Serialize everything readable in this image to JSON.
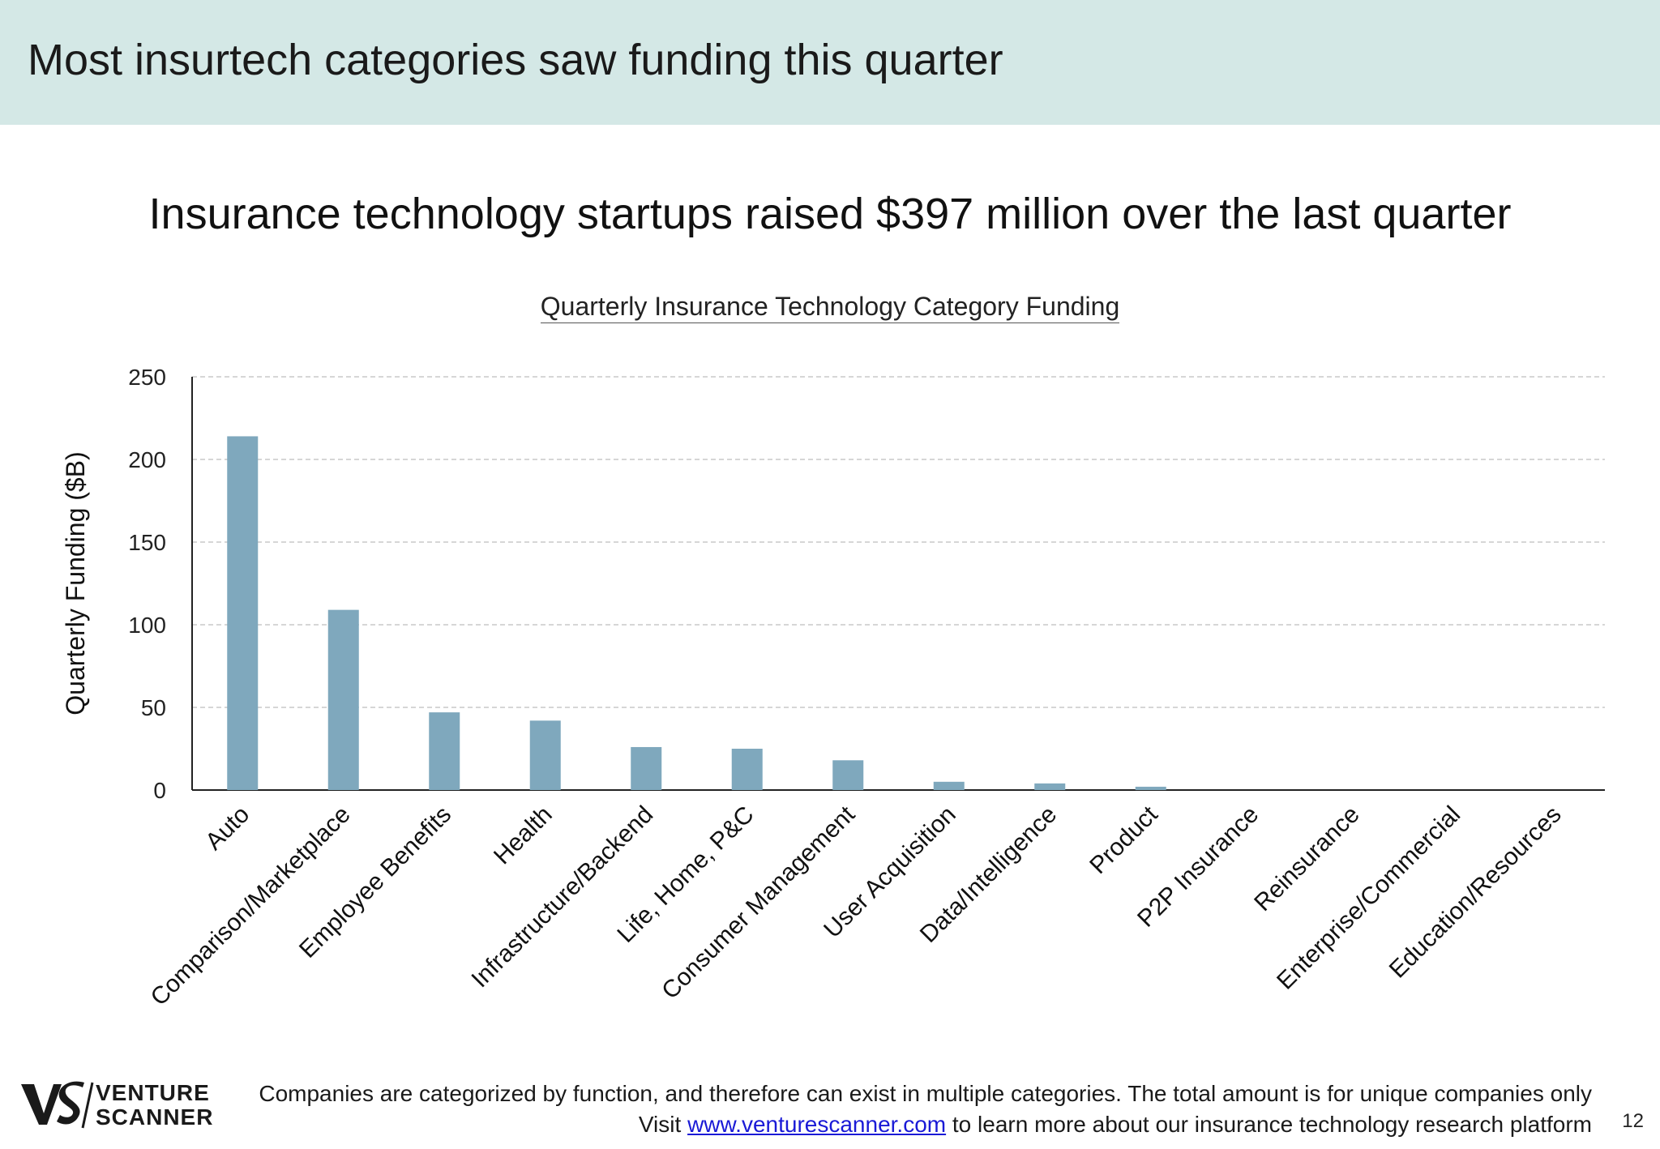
{
  "header": {
    "title": "Most insurtech categories saw funding this quarter"
  },
  "subtitle": "Insurance technology startups raised $397 million over the last quarter",
  "chart_data": {
    "type": "bar",
    "title": "Quarterly Insurance Technology Category Funding",
    "xlabel": "",
    "ylabel": "Quarterly Funding ($B)",
    "categories": [
      "Auto",
      "Comparison/Marketplace",
      "Employee Benefits",
      "Health",
      "Infrastructure/Backend",
      "Life, Home, P&C",
      "Consumer Management",
      "User Acquisition",
      "Data/Intelligence",
      "Product",
      "P2P Insurance",
      "Reinsurance",
      "Enterprise/Commercial",
      "Education/Resources"
    ],
    "values": [
      214,
      109,
      47,
      42,
      26,
      25,
      18,
      5,
      4,
      2,
      0,
      0,
      0,
      0
    ],
    "ylim": [
      0,
      250
    ],
    "yticks": [
      0,
      50,
      100,
      150,
      200,
      250
    ],
    "grid": true,
    "bar_color": "#7fa8bd"
  },
  "footer": {
    "note": "Companies are categorized by function, and therefore can exist in multiple categories. The total amount is for unique companies only",
    "visit_prefix": "Visit",
    "link_text": "www.venturescanner.com",
    "visit_suffix": "to learn more about our insurance technology research platform"
  },
  "logo": {
    "line1": "VENTURE",
    "line2": "SCANNER"
  },
  "page_number": "12"
}
